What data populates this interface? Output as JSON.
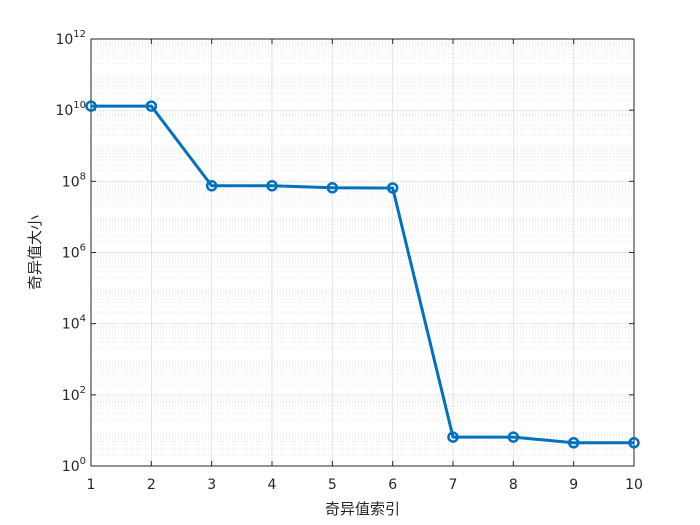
{
  "chart_data": {
    "type": "line",
    "xlabel": "奇异值索引",
    "ylabel": "奇异值大小",
    "x": [
      1,
      2,
      3,
      4,
      5,
      6,
      7,
      8,
      9,
      10
    ],
    "series": [
      {
        "values": [
          13000000000,
          13000000000,
          75000000,
          75000000,
          66000000,
          65000000,
          6.5,
          6.5,
          4.5,
          4.5
        ],
        "color": "#0072BD",
        "marker": "circle"
      }
    ],
    "xlim": [
      1,
      10
    ],
    "ylim": [
      1,
      1000000000000
    ],
    "yscale": "log",
    "x_ticks": [
      "1",
      "2",
      "3",
      "4",
      "5",
      "6",
      "7",
      "8",
      "9",
      "10"
    ],
    "y_ticks": [
      {
        "base": "10",
        "exp": "0"
      },
      {
        "base": "10",
        "exp": "2"
      },
      {
        "base": "10",
        "exp": "4"
      },
      {
        "base": "10",
        "exp": "6"
      },
      {
        "base": "10",
        "exp": "8"
      },
      {
        "base": "10",
        "exp": "10"
      },
      {
        "base": "10",
        "exp": "12"
      }
    ],
    "grid": true,
    "minor_grid": true
  }
}
